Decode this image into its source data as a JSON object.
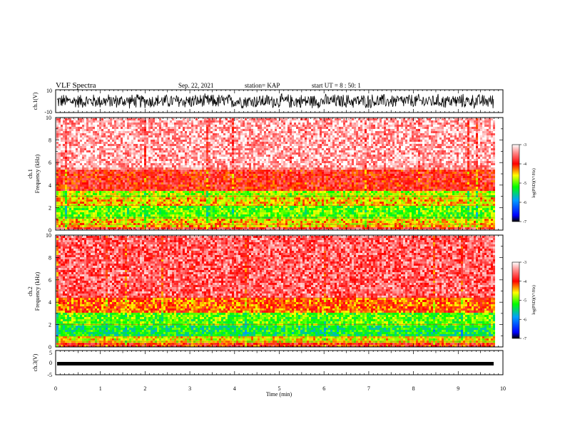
{
  "header": {
    "title": "VLF Spectra",
    "date": "Sep. 22, 2021",
    "station": "station= KAP",
    "start": "start UT =  8 : 50: 1"
  },
  "chart_data": [
    {
      "type": "line",
      "name": "ch1-waveform",
      "ylabel": "ch.1(V)",
      "ylim": [
        -10,
        10
      ],
      "yticks": [
        "10",
        "-10"
      ],
      "xlim": [
        0,
        10
      ],
      "series": [
        {
          "noise_amplitude_peak": 7,
          "values_range": [
            -8,
            8
          ]
        }
      ]
    },
    {
      "type": "heatmap",
      "name": "ch1-spectrogram",
      "ylabel": "ch.1",
      "ylabel2": "Frequency (kHz)",
      "ylim": [
        0,
        10
      ],
      "yticks": [
        "0",
        "2",
        "4",
        "6",
        "8",
        "10"
      ],
      "xlim": [
        0,
        9.8
      ],
      "bands": [
        {
          "f_low": 0,
          "f_high": 0.4,
          "level": -3.8
        },
        {
          "f_low": 0.4,
          "f_high": 1.2,
          "level": -4.5
        },
        {
          "f_low": 1.2,
          "f_high": 2.2,
          "level": -5.0
        },
        {
          "f_low": 2.2,
          "f_high": 3.0,
          "level": -4.5
        },
        {
          "f_low": 3.0,
          "f_high": 3.6,
          "level": -4.8
        },
        {
          "f_low": 3.6,
          "f_high": 5.5,
          "level": -3.9
        },
        {
          "f_low": 5.5,
          "f_high": 10,
          "level": -3.3
        }
      ],
      "colorbar": {
        "label": "log(PSD)(V²/Hz)",
        "ticks": [
          "-3",
          "-4",
          "-5",
          "-6",
          "-7"
        ],
        "range": [
          -7,
          -3
        ]
      }
    },
    {
      "type": "heatmap",
      "name": "ch2-spectrogram",
      "ylabel": "ch.2",
      "ylabel2": "Frequency (kHz)",
      "ylim": [
        0,
        10
      ],
      "yticks": [
        "0",
        "2",
        "4",
        "6",
        "8",
        "10"
      ],
      "xlim": [
        0,
        9.8
      ],
      "bands": [
        {
          "f_low": 0,
          "f_high": 0.5,
          "level": -4.0
        },
        {
          "f_low": 0.5,
          "f_high": 1.0,
          "level": -4.6
        },
        {
          "f_low": 1.0,
          "f_high": 2.0,
          "level": -5.3
        },
        {
          "f_low": 2.0,
          "f_high": 3.2,
          "level": -5.0
        },
        {
          "f_low": 3.2,
          "f_high": 4.5,
          "level": -4.2
        },
        {
          "f_low": 4.5,
          "f_high": 10,
          "level": -3.6
        }
      ],
      "colorbar": {
        "label": "log(PSD)(V²/Hz)",
        "ticks": [
          "-3",
          "-4",
          "-5",
          "-6",
          "-7"
        ],
        "range": [
          -7,
          -3
        ]
      }
    },
    {
      "type": "line",
      "name": "ch3-waveform",
      "ylabel": "ch.3(V)",
      "ylim": [
        -5,
        5
      ],
      "yticks": [
        "5",
        "0",
        "-5"
      ],
      "xlim": [
        0,
        10
      ],
      "xlabel": "Time (min)",
      "xticks": [
        "0",
        "1",
        "2",
        "3",
        "4",
        "5",
        "6",
        "7",
        "8",
        "9",
        "10"
      ],
      "series": [
        {
          "level": -0.5,
          "values_range": [
            -1,
            0
          ]
        }
      ]
    }
  ],
  "colors": {
    "axis": "#000000",
    "background": "#ffffff"
  }
}
